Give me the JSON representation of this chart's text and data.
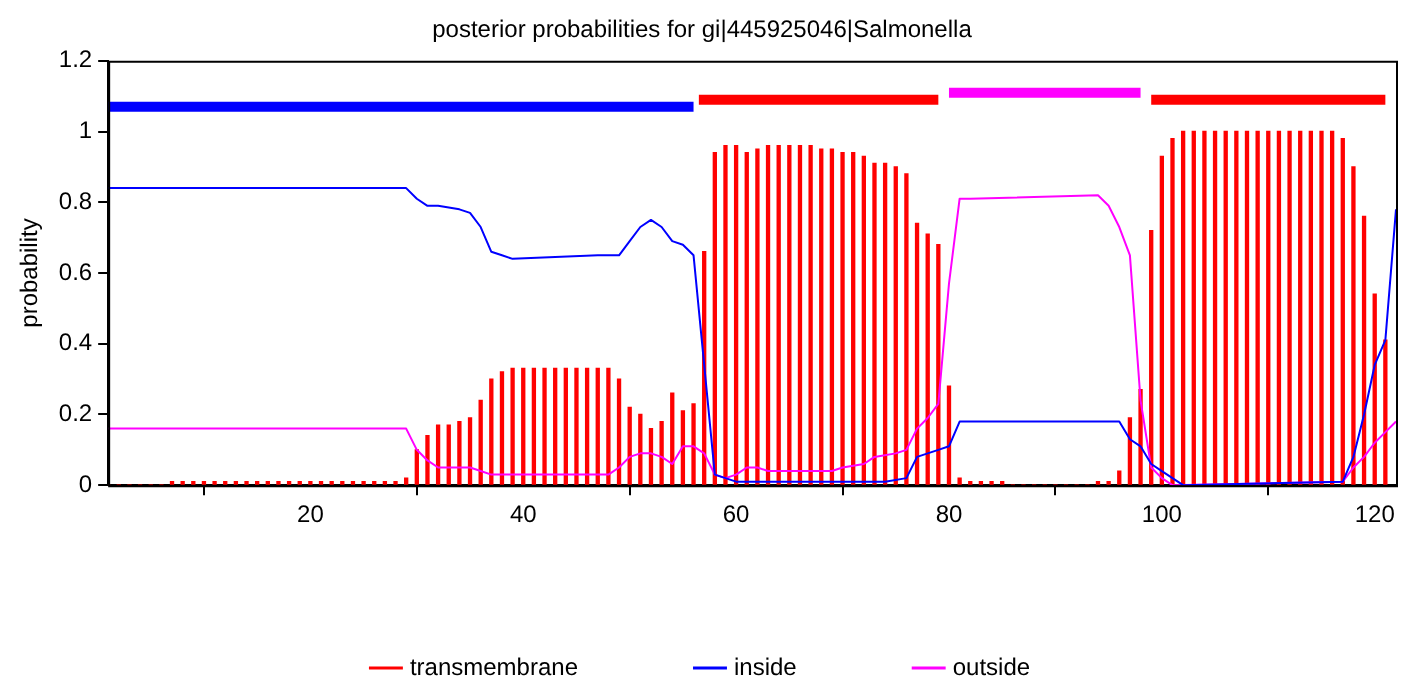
{
  "chart_data": {
    "type": "bar",
    "title": "posterior probabilities for gi|445925046|Salmonella",
    "ylabel": "probability",
    "xlim": [
      1,
      122
    ],
    "xticks": [
      20,
      40,
      60,
      80,
      100,
      120
    ],
    "ylim": [
      0,
      1.2
    ],
    "yticks": [
      0,
      0.2,
      0.4,
      0.6,
      0.8,
      1,
      1.2
    ],
    "legend": "bottom",
    "x": [
      1,
      2,
      3,
      4,
      5,
      6,
      7,
      8,
      9,
      10,
      11,
      12,
      13,
      14,
      15,
      16,
      17,
      18,
      19,
      20,
      21,
      22,
      23,
      24,
      25,
      26,
      27,
      28,
      29,
      30,
      31,
      32,
      33,
      34,
      35,
      36,
      37,
      38,
      39,
      40,
      41,
      42,
      43,
      44,
      45,
      46,
      47,
      48,
      49,
      50,
      51,
      52,
      53,
      54,
      55,
      56,
      57,
      58,
      59,
      60,
      61,
      62,
      63,
      64,
      65,
      66,
      67,
      68,
      69,
      70,
      71,
      72,
      73,
      74,
      75,
      76,
      77,
      78,
      79,
      80,
      81,
      82,
      83,
      84,
      85,
      86,
      87,
      88,
      89,
      90,
      91,
      92,
      93,
      94,
      95,
      96,
      97,
      98,
      99,
      100,
      101,
      102,
      103,
      104,
      105,
      106,
      107,
      108,
      109,
      110,
      111,
      112,
      113,
      114,
      115,
      116,
      117,
      118,
      119,
      120,
      121
    ],
    "series": [
      {
        "name": "transmembrane",
        "color": "#ff0000",
        "values": [
          0,
          0,
          0,
          0,
          0,
          0,
          0.01,
          0.01,
          0.01,
          0.01,
          0.01,
          0.01,
          0.01,
          0.01,
          0.01,
          0.01,
          0.01,
          0.01,
          0.01,
          0.01,
          0.01,
          0.01,
          0.01,
          0.01,
          0.01,
          0.01,
          0.01,
          0.01,
          0.02,
          0.1,
          0.14,
          0.17,
          0.17,
          0.18,
          0.19,
          0.24,
          0.3,
          0.32,
          0.33,
          0.33,
          0.33,
          0.33,
          0.33,
          0.33,
          0.33,
          0.33,
          0.33,
          0.33,
          0.3,
          0.22,
          0.2,
          0.16,
          0.18,
          0.26,
          0.21,
          0.23,
          0.66,
          0.94,
          0.96,
          0.96,
          0.94,
          0.95,
          0.96,
          0.96,
          0.96,
          0.96,
          0.96,
          0.95,
          0.95,
          0.94,
          0.94,
          0.93,
          0.91,
          0.91,
          0.9,
          0.88,
          0.74,
          0.71,
          0.68,
          0.28,
          0.02,
          0.01,
          0.01,
          0.01,
          0.01,
          0,
          0,
          0,
          0,
          0,
          0,
          0,
          0,
          0.01,
          0.01,
          0.04,
          0.19,
          0.27,
          0.72,
          0.93,
          0.98,
          1,
          1,
          1,
          1,
          1,
          1,
          1,
          1,
          1,
          1,
          1,
          1,
          1,
          1,
          1,
          0.98,
          0.9,
          0.76,
          0.54,
          0.41
        ]
      },
      {
        "name": "inside",
        "type": "line",
        "color": "#0000ff",
        "x": [
          1,
          29,
          30,
          31,
          32,
          34,
          35,
          36,
          37,
          38,
          39,
          47,
          49,
          50,
          51,
          52,
          53,
          54,
          55,
          56,
          57,
          58,
          59,
          60,
          61,
          72,
          74,
          76,
          77,
          78,
          79,
          80,
          81,
          96,
          97,
          98,
          99,
          100,
          101,
          102,
          117,
          118,
          119,
          120,
          121,
          122
        ],
        "values": [
          0.84,
          0.84,
          0.81,
          0.79,
          0.79,
          0.78,
          0.77,
          0.73,
          0.66,
          0.65,
          0.64,
          0.65,
          0.65,
          0.69,
          0.73,
          0.75,
          0.73,
          0.69,
          0.68,
          0.65,
          0.34,
          0.03,
          0.02,
          0.01,
          0.01,
          0.01,
          0.01,
          0.02,
          0.08,
          0.09,
          0.1,
          0.11,
          0.18,
          0.18,
          0.13,
          0.11,
          0.06,
          0.04,
          0.02,
          0,
          0.01,
          0.08,
          0.2,
          0.34,
          0.41,
          0.78
        ]
      },
      {
        "name": "outside",
        "type": "line",
        "color": "#ff00ff",
        "x": [
          1,
          29,
          30,
          31,
          32,
          33,
          35,
          36,
          37,
          48,
          49,
          50,
          51,
          52,
          53,
          54,
          55,
          56,
          57,
          58,
          59,
          60,
          61,
          62,
          63,
          69,
          70,
          72,
          73,
          75,
          76,
          77,
          78,
          79,
          80,
          81,
          82,
          94,
          95,
          96,
          97,
          98,
          99,
          100,
          101,
          117,
          118,
          119,
          120,
          121,
          122
        ],
        "values": [
          0.16,
          0.16,
          0.1,
          0.07,
          0.05,
          0.05,
          0.05,
          0.04,
          0.03,
          0.03,
          0.05,
          0.08,
          0.09,
          0.09,
          0.08,
          0.06,
          0.11,
          0.11,
          0.09,
          0.03,
          0.02,
          0.03,
          0.05,
          0.05,
          0.04,
          0.04,
          0.05,
          0.06,
          0.08,
          0.09,
          0.1,
          0.16,
          0.19,
          0.23,
          0.57,
          0.81,
          0.81,
          0.82,
          0.79,
          0.73,
          0.65,
          0.24,
          0.05,
          0.02,
          0,
          0.01,
          0.05,
          0.08,
          0.12,
          0.15,
          0.18
        ]
      },
      {
        "type": "line",
        "color": "#0000ff",
        "x": [
          1,
          56
        ],
        "values": [
          1.07,
          1.07
        ]
      },
      {
        "type": "line",
        "color": "#ff0000",
        "x": [
          56.5,
          79
        ],
        "values": [
          1.09,
          1.09
        ]
      },
      {
        "type": "line",
        "color": "#ff00ff",
        "x": [
          80,
          98
        ],
        "values": [
          1.11,
          1.11
        ]
      },
      {
        "type": "line",
        "color": "#ff0000",
        "x": [
          99,
          121
        ],
        "values": [
          1.09,
          1.09
        ]
      }
    ]
  }
}
